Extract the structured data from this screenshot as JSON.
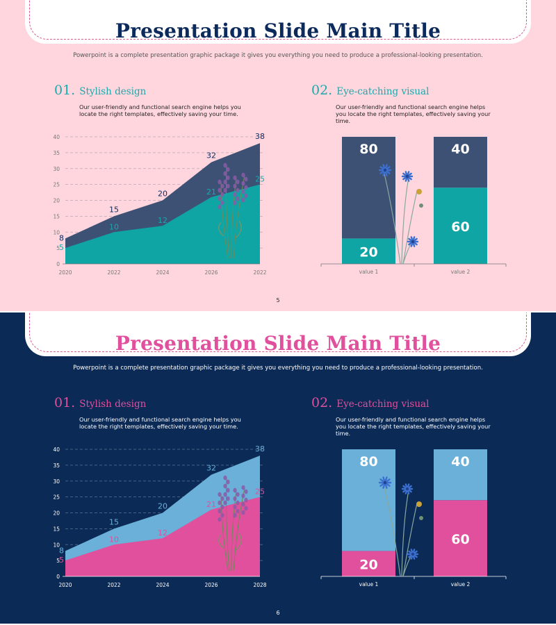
{
  "slides": [
    {
      "title": "Presentation Slide Main Title",
      "subtitle": "Powerpoint is a complete presentation graphic package it gives you everything you need to produce a professional-looking presentation.",
      "page_number": "5",
      "colors": {
        "background": "#ffd6de",
        "title": "#0d2a5c",
        "subtitle": "#555555",
        "accent": "#1aa9ab",
        "body_text": "#222222",
        "series_top": "#3d5175",
        "series_bottom": "#0ea5a4",
        "top_labels": "#0d2a5c",
        "bottom_labels": "#1aa9ab",
        "axis_text": "#777777",
        "grid": "#b9a6b4"
      },
      "section_1": {
        "number": "01.",
        "title": "Stylish design",
        "body": "Our user-friendly and functional search engine helps you locate the right templates, effectively saving your time."
      },
      "section_2": {
        "number": "02.",
        "title": "Eye-catching visual",
        "body": "Our user-friendly and functional search engine helps you locate the right templates, effectively saving your time."
      },
      "area_chart": {
        "type": "area",
        "x_labels": [
          "2020",
          "2022",
          "2024",
          "2026",
          "2022"
        ],
        "y_ticks": [
          0,
          5,
          10,
          15,
          20,
          25,
          30,
          35,
          40
        ],
        "ylim": [
          0,
          40
        ],
        "series": [
          {
            "values": [
              5,
              10,
              12,
              21,
              25
            ]
          },
          {
            "values": [
              8,
              15,
              20,
              32,
              38
            ]
          }
        ]
      },
      "bar_chart": {
        "type": "bar",
        "categories": [
          "value 1",
          "value 2"
        ],
        "series": [
          {
            "values": [
              20,
              60
            ]
          },
          {
            "values": [
              80,
              40
            ]
          }
        ]
      }
    },
    {
      "title": "Presentation Slide Main Title",
      "subtitle": "Powerpoint is a complete presentation graphic package it gives you everything you need to produce a professional-looking presentation.",
      "page_number": "6",
      "colors": {
        "background": "#0b2a56",
        "title": "#e0509c",
        "subtitle": "#ffffff",
        "accent": "#e0509c",
        "body_text": "#ffffff",
        "series_top": "#6ab0d8",
        "series_bottom": "#e0509c",
        "top_labels": "#6ab0d8",
        "bottom_labels": "#e0509c",
        "axis_text": "#ffffff",
        "grid": "#5b7496"
      },
      "section_1": {
        "number": "01.",
        "title": "Stylish design",
        "body": "Our user-friendly and functional search engine helps you locate the right templates, effectively saving your time."
      },
      "section_2": {
        "number": "02.",
        "title": "Eye-catching visual",
        "body": "Our user-friendly and functional search engine helps you locate the right templates, effectively saving your time."
      },
      "area_chart": {
        "type": "area",
        "x_labels": [
          "2020",
          "2022",
          "2024",
          "2026",
          "2028"
        ],
        "y_ticks": [
          0,
          5,
          10,
          15,
          20,
          25,
          30,
          35,
          40
        ],
        "ylim": [
          0,
          40
        ],
        "series": [
          {
            "values": [
              5,
              10,
              12,
              21,
              25
            ]
          },
          {
            "values": [
              8,
              15,
              20,
              32,
              38
            ]
          }
        ]
      },
      "bar_chart": {
        "type": "bar",
        "categories": [
          "value 1",
          "value 2"
        ],
        "series": [
          {
            "values": [
              20,
              60
            ]
          },
          {
            "values": [
              80,
              40
            ]
          }
        ]
      }
    }
  ],
  "chart_data": [
    {
      "type": "area",
      "x": [
        "2020",
        "2022",
        "2024",
        "2026",
        "2022"
      ],
      "series": [
        {
          "values": [
            5,
            10,
            12,
            21,
            25
          ]
        },
        {
          "values": [
            8,
            15,
            20,
            32,
            38
          ]
        }
      ],
      "ylim": [
        0,
        40
      ],
      "grid": true
    },
    {
      "type": "bar",
      "categories": [
        "value 1",
        "value 2"
      ],
      "series": [
        {
          "values": [
            20,
            60
          ]
        },
        {
          "values": [
            80,
            40
          ]
        }
      ],
      "stacked": true
    },
    {
      "type": "area",
      "x": [
        "2020",
        "2022",
        "2024",
        "2026",
        "2028"
      ],
      "series": [
        {
          "values": [
            5,
            10,
            12,
            21,
            25
          ]
        },
        {
          "values": [
            8,
            15,
            20,
            32,
            38
          ]
        }
      ],
      "ylim": [
        0,
        40
      ],
      "grid": true
    },
    {
      "type": "bar",
      "categories": [
        "value 1",
        "value 2"
      ],
      "series": [
        {
          "values": [
            20,
            60
          ]
        },
        {
          "values": [
            80,
            40
          ]
        }
      ],
      "stacked": true
    }
  ]
}
